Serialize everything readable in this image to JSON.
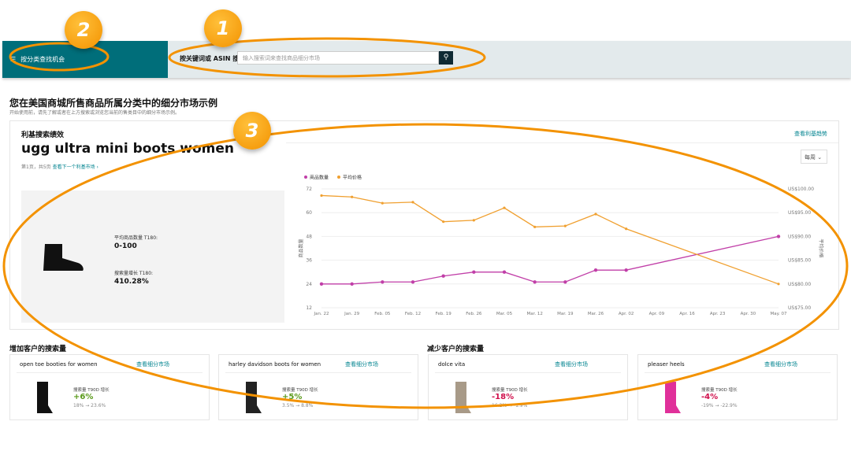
{
  "nav": {
    "menu_label": "按分类查找机会",
    "search_label": "按关键词或 ASIN 搜索",
    "search_placeholder": "输入搜索词来查找商品细分市场"
  },
  "main": {
    "title": "您在美国商城所售商品所属分类中的细分市场示例",
    "subtitle": "开始使用前，请先了解或者在上方搜索或浏览您当前的售类目中的细分市场示例。"
  },
  "card": {
    "title": "利基搜索绩效",
    "keyword": "ugg ultra mini boots women",
    "page": "第1页，共5页",
    "next_link": "查看下一个利基市场 ›",
    "trend_link": "查看利基趋势",
    "period": "每周",
    "metric1_label": "平均商品数量 T180:",
    "metric1_value": "0-100",
    "metric2_label": "搜索量增长 T180:",
    "metric2_value": "410.28%"
  },
  "chart_data": {
    "type": "line",
    "x": [
      "Jan. 22",
      "Jan. 29",
      "Feb. 05",
      "Feb. 12",
      "Feb. 19",
      "Feb. 26",
      "Mar. 05",
      "Mar. 12",
      "Mar. 19",
      "Mar. 26",
      "Apr. 02",
      "Apr. 09",
      "Apr. 16",
      "Apr. 23",
      "Apr. 30",
      "May. 07"
    ],
    "ylabel": "商品数量",
    "y2label": "平均价格",
    "yticks": [
      "72",
      "60",
      "48",
      "36",
      "24",
      "12"
    ],
    "y2ticks": [
      "US$100.00",
      "US$95.00",
      "US$90.00",
      "US$85.00",
      "US$80.00",
      "US$75.00"
    ],
    "ylim": [
      12,
      72
    ],
    "y2lim": [
      75,
      100
    ],
    "series": [
      {
        "name": "商品数量",
        "axis": "left",
        "color": "#c13fa8",
        "values": [
          24,
          24,
          25,
          25,
          28,
          30,
          30,
          25,
          25,
          31,
          31,
          null,
          null,
          null,
          null,
          48
        ]
      },
      {
        "name": "平均价格",
        "axis": "right",
        "color": "#f0a030",
        "values": [
          98.6,
          98.3,
          97,
          97.2,
          93.1,
          93.4,
          96,
          92,
          92.2,
          94.7,
          91.6,
          null,
          null,
          null,
          null,
          80
        ]
      }
    ],
    "legend": "top-left",
    "grid": true
  },
  "increase": {
    "title": "增加客户的搜索量",
    "items": [
      {
        "name": "open toe booties for women",
        "link": "查看细分市场",
        "label": "搜索量 T90D 增长",
        "pct": "+6%",
        "range": "18% → 23.6%"
      },
      {
        "name": "harley davidson boots for women",
        "link": "查看细分市场",
        "label": "搜索量 T90D 增长",
        "pct": "+5%",
        "range": "3.5% → 8.8%"
      }
    ]
  },
  "decrease": {
    "title": "减少客户的搜索量",
    "items": [
      {
        "name": "dolce vita",
        "link": "查看细分市场",
        "label": "搜索量 T90D 增长",
        "pct": "-18%",
        "range": "16.2% → -1.9%"
      },
      {
        "name": "pleaser heels",
        "link": "查看细分市场",
        "label": "搜索量 T90D 增长",
        "pct": "-4%",
        "range": "-19% → -22.9%"
      }
    ]
  },
  "badges": [
    "1",
    "2",
    "3"
  ],
  "colors": {
    "teal": "#006e7a",
    "up": "#5a9a1a",
    "down": "#d0104c",
    "annotation": "#f39200"
  }
}
